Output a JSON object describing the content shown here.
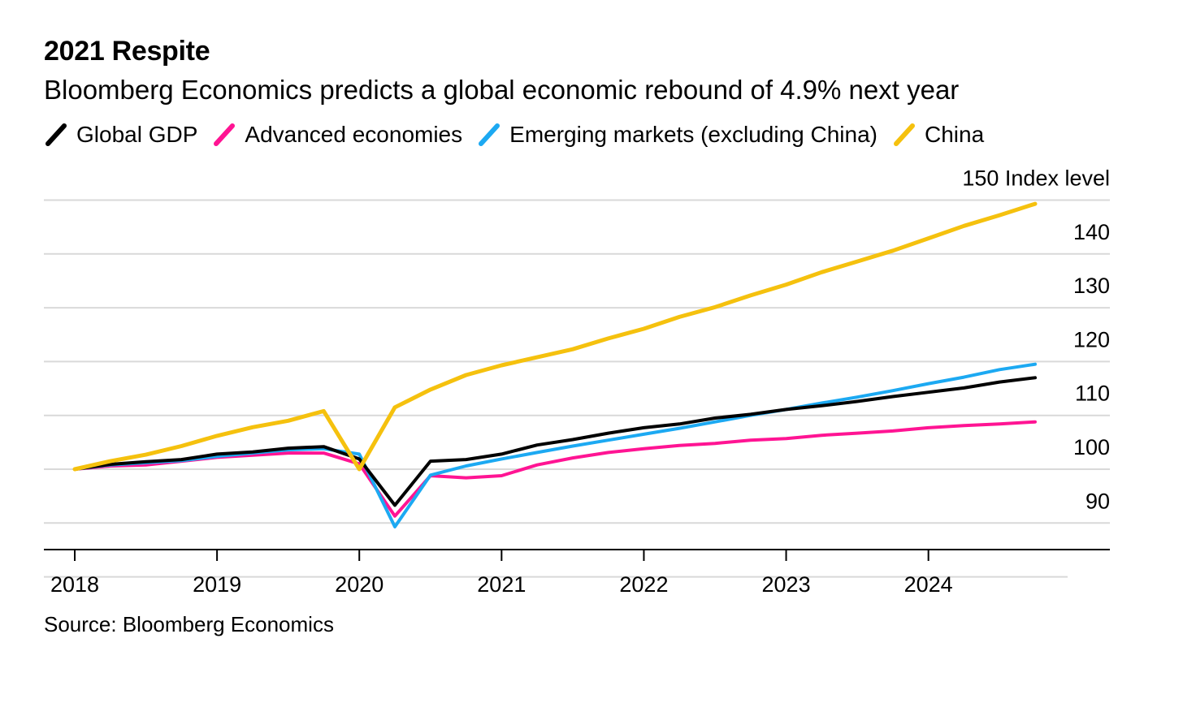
{
  "header": {
    "title": "2021 Respite",
    "subtitle": "Bloomberg Economics predicts a global economic rebound of 4.9% next year"
  },
  "source": "Source: Bloomberg Economics",
  "chart_data": {
    "type": "line",
    "title": "2021 Respite",
    "subtitle": "Bloomberg Economics predicts a global economic rebound of 4.9% next year",
    "ylabel": "Index level",
    "xlabel": "",
    "ylim": [
      80,
      150
    ],
    "xlim": [
      2018,
      2024.9
    ],
    "yticks": [
      90,
      100,
      110,
      120,
      130,
      140,
      150
    ],
    "xticks": [
      2018,
      2019,
      2020,
      2021,
      2022,
      2023,
      2024
    ],
    "xtick_labels": [
      "2018",
      "2019",
      "2020",
      "2021",
      "2022",
      "2023",
      "2024"
    ],
    "grid": true,
    "legend_position": "top",
    "x": [
      2018,
      2018.25,
      2018.5,
      2018.75,
      2019,
      2019.25,
      2019.5,
      2019.75,
      2020,
      2020.25,
      2020.5,
      2020.75,
      2021,
      2021.25,
      2021.5,
      2021.75,
      2022,
      2022.25,
      2022.5,
      2022.75,
      2023,
      2023.25,
      2023.5,
      2023.75,
      2024,
      2024.25,
      2024.5,
      2024.75
    ],
    "series": [
      {
        "name": "Global GDP",
        "color": "#000000",
        "values": [
          100,
          100.9,
          101.4,
          101.8,
          102.8,
          103.2,
          103.9,
          104.2,
          101.9,
          93.3,
          101.5,
          101.8,
          102.8,
          104.5,
          105.5,
          106.7,
          107.7,
          108.4,
          109.5,
          110.2,
          111.1,
          111.8,
          112.6,
          113.5,
          114.3,
          115.1,
          116.2,
          117.0
        ],
        "line_width": 4
      },
      {
        "name": "Advanced economies",
        "color": "#ff1493",
        "values": [
          100,
          100.6,
          100.8,
          101.5,
          102.2,
          102.6,
          103.0,
          103.0,
          101.0,
          91.3,
          98.8,
          98.4,
          98.8,
          100.8,
          102.1,
          103.1,
          103.8,
          104.4,
          104.8,
          105.4,
          105.7,
          106.3,
          106.7,
          107.1,
          107.7,
          108.1,
          108.4,
          108.8
        ],
        "line_width": 4
      },
      {
        "name": "Emerging markets (excluding China)",
        "color": "#1ca9f2",
        "values": [
          100,
          100.8,
          101.2,
          101.6,
          102.4,
          103.0,
          103.6,
          103.8,
          102.8,
          89.3,
          98.9,
          100.6,
          101.9,
          103.1,
          104.3,
          105.4,
          106.5,
          107.6,
          108.8,
          110.0,
          111.1,
          112.3,
          113.4,
          114.6,
          115.9,
          117.1,
          118.5,
          119.5
        ],
        "line_width": 4
      },
      {
        "name": "China",
        "color": "#f5c10e",
        "values": [
          100,
          101.5,
          102.7,
          104.3,
          106.2,
          107.8,
          109.0,
          110.8,
          100.0,
          111.5,
          114.8,
          117.5,
          119.3,
          120.8,
          122.3,
          124.3,
          126.1,
          128.3,
          130.1,
          132.3,
          134.3,
          136.6,
          138.6,
          140.6,
          142.9,
          145.2,
          147.2,
          149.3
        ],
        "line_width": 5
      }
    ]
  }
}
